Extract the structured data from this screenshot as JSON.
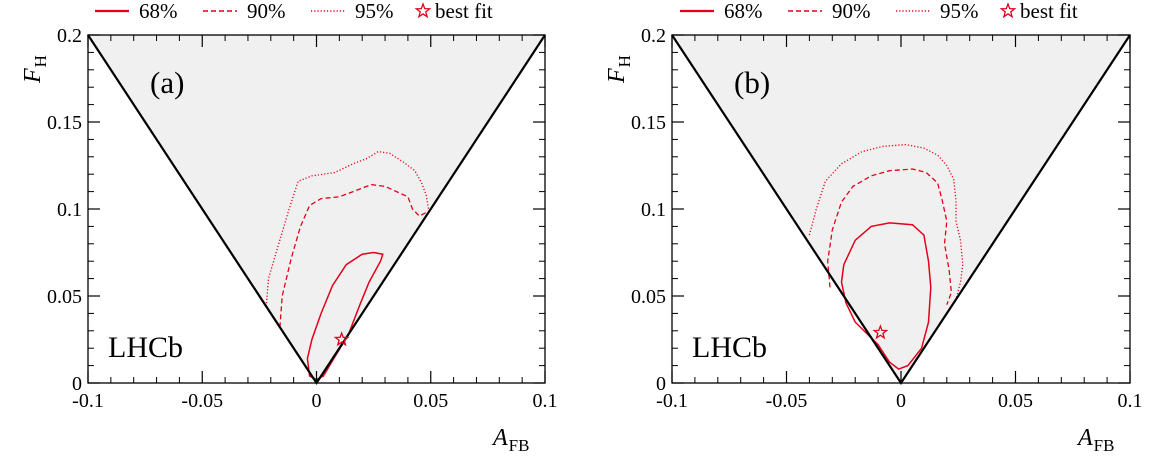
{
  "legend": {
    "items": [
      {
        "label": "68%",
        "style": "solid"
      },
      {
        "label": "90%",
        "style": "dashed"
      },
      {
        "label": "95%",
        "style": "dotted"
      },
      {
        "label": "best fit",
        "style": "star"
      }
    ]
  },
  "colors": {
    "contour": "#e4001b",
    "region": "#f0f0f0",
    "axis": "#000000"
  },
  "chart_data": [
    {
      "type": "contour",
      "panel_label": "(a)",
      "watermark": "LHCb",
      "xlabel_main": "A",
      "xlabel_sub": "FB",
      "ylabel_main": "F",
      "ylabel_sub": "H",
      "xlim": [
        -0.1,
        0.1
      ],
      "ylim": [
        0,
        0.2
      ],
      "xticks": [
        -0.1,
        -0.05,
        0,
        0.05,
        0.1
      ],
      "xtick_labels": [
        "-0.1",
        "-0.05",
        "0",
        "0.05",
        "0.1"
      ],
      "yticks": [
        0,
        0.05,
        0.1,
        0.15,
        0.2
      ],
      "ytick_labels": [
        "0",
        "0.05",
        "0.1",
        "0.15",
        "0.2"
      ],
      "physical_region": [
        [
          -0.1,
          0.2
        ],
        [
          0,
          0
        ],
        [
          0.1,
          0.2
        ]
      ],
      "best_fit": [
        0.011,
        0.025
      ],
      "contours": [
        {
          "level": "68%",
          "style": "solid",
          "closed": true,
          "points": [
            [
              0.0,
              0.002
            ],
            [
              0.003,
              0.004
            ],
            [
              0.008,
              0.015
            ],
            [
              0.014,
              0.028
            ],
            [
              0.019,
              0.045
            ],
            [
              0.023,
              0.058
            ],
            [
              0.028,
              0.07
            ],
            [
              0.029,
              0.074
            ],
            [
              0.025,
              0.075
            ],
            [
              0.02,
              0.074
            ],
            [
              0.013,
              0.068
            ],
            [
              0.007,
              0.056
            ],
            [
              0.002,
              0.04
            ],
            [
              -0.002,
              0.025
            ],
            [
              -0.004,
              0.014
            ],
            [
              -0.003,
              0.004
            ]
          ]
        },
        {
          "level": "90%",
          "style": "dashed",
          "closed": false,
          "points": [
            [
              -0.016,
              0.032
            ],
            [
              -0.015,
              0.05
            ],
            [
              -0.011,
              0.072
            ],
            [
              -0.007,
              0.09
            ],
            [
              -0.003,
              0.102
            ],
            [
              0.002,
              0.106
            ],
            [
              0.01,
              0.107
            ],
            [
              0.018,
              0.111
            ],
            [
              0.024,
              0.114
            ],
            [
              0.03,
              0.113
            ],
            [
              0.035,
              0.11
            ],
            [
              0.04,
              0.107
            ],
            [
              0.042,
              0.1
            ],
            [
              0.045,
              0.096
            ],
            [
              0.048,
              0.098
            ]
          ]
        },
        {
          "level": "95%",
          "style": "dotted",
          "closed": false,
          "points": [
            [
              -0.022,
              0.044
            ],
            [
              -0.021,
              0.06
            ],
            [
              -0.017,
              0.078
            ],
            [
              -0.012,
              0.1
            ],
            [
              -0.008,
              0.116
            ],
            [
              -0.002,
              0.119
            ],
            [
              0.008,
              0.121
            ],
            [
              0.016,
              0.126
            ],
            [
              0.022,
              0.129
            ],
            [
              0.027,
              0.133
            ],
            [
              0.032,
              0.132
            ],
            [
              0.038,
              0.127
            ],
            [
              0.043,
              0.122
            ],
            [
              0.046,
              0.115
            ],
            [
              0.048,
              0.108
            ],
            [
              0.049,
              0.1
            ]
          ]
        }
      ]
    },
    {
      "type": "contour",
      "panel_label": "(b)",
      "watermark": "LHCb",
      "xlabel_main": "A",
      "xlabel_sub": "FB",
      "ylabel_main": "F",
      "ylabel_sub": "H",
      "xlim": [
        -0.1,
        0.1
      ],
      "ylim": [
        0,
        0.2
      ],
      "xticks": [
        -0.1,
        -0.05,
        0,
        0.05,
        0.1
      ],
      "xtick_labels": [
        "-0.1",
        "-0.05",
        "0",
        "0.05",
        "0.1"
      ],
      "yticks": [
        0,
        0.05,
        0.1,
        0.15,
        0.2
      ],
      "ytick_labels": [
        "0",
        "0.05",
        "0.1",
        "0.15",
        "0.2"
      ],
      "physical_region": [
        [
          -0.1,
          0.2
        ],
        [
          0,
          0
        ],
        [
          0.1,
          0.2
        ]
      ],
      "best_fit": [
        -0.009,
        0.029
      ],
      "contours": [
        {
          "level": "68%",
          "style": "solid",
          "closed": true,
          "points": [
            [
              -0.001,
              0.008
            ],
            [
              0.003,
              0.01
            ],
            [
              0.009,
              0.02
            ],
            [
              0.012,
              0.035
            ],
            [
              0.013,
              0.055
            ],
            [
              0.012,
              0.07
            ],
            [
              0.01,
              0.085
            ],
            [
              0.005,
              0.091
            ],
            [
              -0.005,
              0.092
            ],
            [
              -0.013,
              0.09
            ],
            [
              -0.02,
              0.082
            ],
            [
              -0.025,
              0.068
            ],
            [
              -0.026,
              0.058
            ],
            [
              -0.024,
              0.046
            ],
            [
              -0.02,
              0.035
            ],
            [
              -0.01,
              0.022
            ],
            [
              -0.005,
              0.012
            ]
          ]
        },
        {
          "level": "90%",
          "style": "dashed",
          "closed": false,
          "points": [
            [
              -0.031,
              0.055
            ],
            [
              -0.032,
              0.07
            ],
            [
              -0.03,
              0.088
            ],
            [
              -0.026,
              0.104
            ],
            [
              -0.021,
              0.113
            ],
            [
              -0.013,
              0.119
            ],
            [
              -0.005,
              0.122
            ],
            [
              0.005,
              0.123
            ],
            [
              0.011,
              0.121
            ],
            [
              0.016,
              0.115
            ],
            [
              0.018,
              0.105
            ],
            [
              0.02,
              0.093
            ],
            [
              0.019,
              0.08
            ],
            [
              0.021,
              0.065
            ],
            [
              0.022,
              0.052
            ],
            [
              0.02,
              0.045
            ]
          ]
        },
        {
          "level": "95%",
          "style": "dotted",
          "closed": false,
          "points": [
            [
              -0.04,
              0.085
            ],
            [
              -0.037,
              0.1
            ],
            [
              -0.033,
              0.116
            ],
            [
              -0.026,
              0.126
            ],
            [
              -0.017,
              0.133
            ],
            [
              -0.008,
              0.136
            ],
            [
              0.002,
              0.137
            ],
            [
              0.01,
              0.135
            ],
            [
              0.016,
              0.131
            ],
            [
              0.02,
              0.125
            ],
            [
              0.023,
              0.117
            ],
            [
              0.024,
              0.105
            ],
            [
              0.024,
              0.093
            ],
            [
              0.026,
              0.082
            ],
            [
              0.027,
              0.068
            ],
            [
              0.026,
              0.058
            ],
            [
              0.024,
              0.048
            ]
          ]
        }
      ]
    }
  ]
}
